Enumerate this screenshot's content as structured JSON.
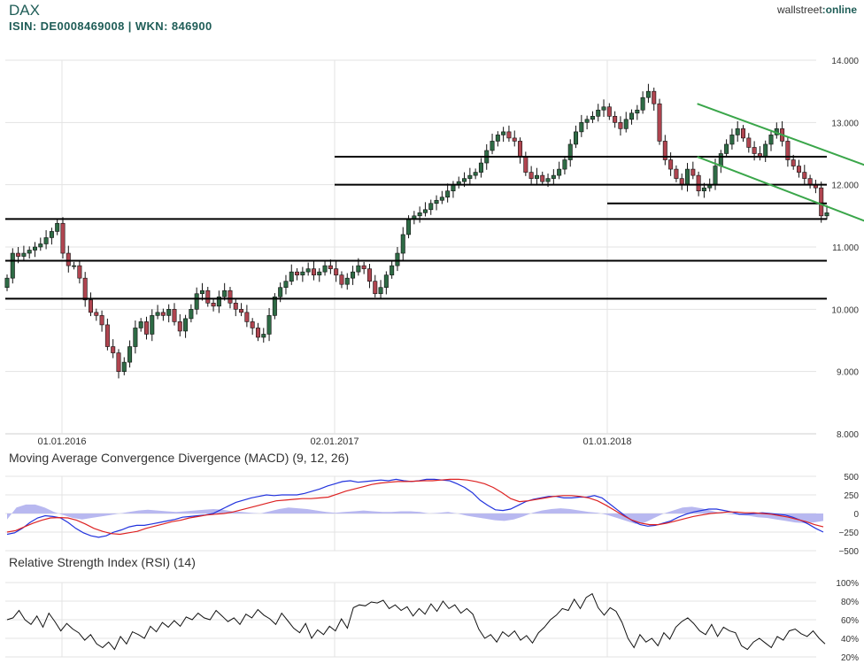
{
  "header": {
    "title": "DAX",
    "subtitle": "ISIN: DE0008469008 | WKN: 846900",
    "logo_left": "wallstreet",
    "logo_right": ":online"
  },
  "colors": {
    "grid": "#e3e3e3",
    "up": "#2e6b45",
    "down": "#b04550",
    "channel": "#3aa64a",
    "macd": "#2233dd",
    "signal": "#dd2222",
    "histogram": "#b8b8f0",
    "rsi": "#111111"
  },
  "chart_data": [
    {
      "type": "candlestick",
      "title": "DAX",
      "ylim": [
        8000,
        14000
      ],
      "yticks": [
        "14.000",
        "13.000",
        "12.000",
        "11.000",
        "10.000",
        "9.000",
        "8.000"
      ],
      "x_dates": [
        "01.01.2016",
        "02.01.2017",
        "01.01.2018"
      ],
      "support_resistance_levels": [
        {
          "value": 12450,
          "from": "2017-01",
          "to": "2018-12"
        },
        {
          "value": 12000,
          "from": "2017-01",
          "to": "2018-12"
        },
        {
          "value": 11700,
          "from": "2018-01",
          "to": "2018-12"
        },
        {
          "value": 11450,
          "from": "2015-10",
          "to": "2018-12"
        },
        {
          "value": 10780,
          "from": "2015-10",
          "to": "2018-12"
        },
        {
          "value": 10170,
          "from": "2015-10",
          "to": "2018-12"
        }
      ],
      "channel": {
        "upper": [
          [
            2018.33,
            13300
          ],
          [
            2018.92,
            12250
          ]
        ],
        "lower": [
          [
            2018.33,
            12450
          ],
          [
            2018.92,
            11350
          ]
        ]
      },
      "weekly_close": [
        10500,
        10900,
        10850,
        10900,
        10950,
        11000,
        11050,
        11150,
        11250,
        11380,
        10900,
        10700,
        10700,
        10500,
        10150,
        9950,
        9900,
        9750,
        9400,
        9300,
        9000,
        9150,
        9400,
        9700,
        9800,
        9600,
        9900,
        9950,
        9900,
        10000,
        9800,
        9650,
        9850,
        10000,
        10250,
        10300,
        10100,
        10050,
        10200,
        10300,
        10100,
        10000,
        9950,
        9800,
        9700,
        9550,
        9600,
        9900,
        10200,
        10350,
        10450,
        10600,
        10550,
        10600,
        10650,
        10550,
        10600,
        10700,
        10650,
        10550,
        10400,
        10500,
        10600,
        10700,
        10650,
        10450,
        10250,
        10350,
        10550,
        10700,
        10900,
        11200,
        11450,
        11500,
        11550,
        11600,
        11700,
        11750,
        11800,
        11900,
        12000,
        12050,
        12100,
        12150,
        12200,
        12350,
        12550,
        12700,
        12800,
        12850,
        12750,
        12700,
        12450,
        12200,
        12100,
        12150,
        12050,
        12100,
        12150,
        12250,
        12400,
        12650,
        12850,
        13000,
        13050,
        13100,
        13200,
        13250,
        13100,
        13000,
        12900,
        13050,
        13150,
        13200,
        13400,
        13500,
        13300,
        12700,
        12400,
        12250,
        12100,
        12000,
        12250,
        12150,
        11900,
        11950,
        12000,
        12300,
        12500,
        12650,
        12800,
        12900,
        12750,
        12600,
        12500,
        12450,
        12650,
        12800,
        12900,
        12700,
        12400,
        12300,
        12200,
        12100,
        12000,
        11950,
        11500,
        11550
      ]
    },
    {
      "type": "line",
      "title": "Moving Average Convergence Divergence (MACD) (9, 12, 26)",
      "ylim": [
        -500,
        500
      ],
      "yticks": [
        "500",
        "250",
        "0",
        "−250",
        "−500"
      ],
      "series": [
        {
          "values": [
            -280,
            -260,
            -200,
            -120,
            -60,
            -30,
            -40,
            -60,
            -120,
            -200,
            -260,
            -300,
            -320,
            -300,
            -250,
            -220,
            -180,
            -160,
            -160,
            -140,
            -120,
            -100,
            -80,
            -50,
            -40,
            -30,
            -20,
            0,
            50,
            100,
            150,
            180,
            210,
            230,
            250,
            240,
            250,
            250,
            250,
            270,
            300,
            330,
            370,
            400,
            430,
            440,
            420,
            430,
            440,
            450,
            440,
            460,
            440,
            430,
            440,
            460,
            460,
            450,
            440,
            400,
            350,
            280,
            180,
            110,
            50,
            40,
            60,
            110,
            160,
            190,
            210,
            230,
            230,
            210,
            210,
            220,
            220,
            240,
            210,
            130,
            50,
            -30,
            -100,
            -150,
            -170,
            -160,
            -130,
            -100,
            -50,
            -10,
            20,
            40,
            60,
            60,
            40,
            20,
            -10,
            -10,
            0,
            10,
            0,
            -10,
            -20,
            -50,
            -90,
            -140,
            -200,
            -250
          ]
        },
        {
          "values": [
            -250,
            -230,
            -180,
            -130,
            -90,
            -60,
            -55,
            -60,
            -90,
            -140,
            -200,
            -240,
            -270,
            -280,
            -260,
            -240,
            -200,
            -170,
            -140,
            -110,
            -90,
            -60,
            -40,
            -20,
            -10,
            0,
            20,
            50,
            80,
            110,
            140,
            170,
            180,
            190,
            200,
            200,
            210,
            220,
            260,
            300,
            330,
            360,
            390,
            410,
            420,
            430,
            430,
            435,
            440,
            440,
            450,
            460,
            460,
            450,
            430,
            400,
            350,
            280,
            200,
            160,
            170,
            190,
            210,
            230,
            240,
            240,
            230,
            210,
            170,
            110,
            40,
            -30,
            -90,
            -130,
            -150,
            -150,
            -130,
            -100,
            -70,
            -40,
            -20,
            0,
            10,
            20,
            20,
            10,
            10,
            0,
            -10,
            -30,
            -50,
            -80,
            -110,
            -150,
            -180
          ]
        },
        {
          "values": [
            -80,
            80,
            120,
            120,
            80,
            20,
            -20,
            -60,
            -80,
            -60,
            -40,
            -20,
            0,
            20,
            40,
            50,
            40,
            30,
            20,
            30,
            40,
            50,
            60,
            50,
            30,
            20,
            10,
            0,
            30,
            60,
            80,
            70,
            60,
            40,
            20,
            10,
            20,
            30,
            40,
            30,
            20,
            20,
            30,
            30,
            20,
            0,
            10,
            20,
            0,
            -30,
            -50,
            -70,
            -90,
            -100,
            -80,
            -40,
            10,
            40,
            60,
            70,
            60,
            40,
            20,
            10,
            -20,
            -60,
            -100,
            -140,
            -120,
            -60,
            0,
            40,
            80,
            90,
            70,
            40,
            10,
            -10,
            -20,
            -30,
            -50,
            -60,
            -80,
            -100,
            -120,
            -130,
            -120,
            -100
          ]
        }
      ]
    },
    {
      "type": "line",
      "title": "Relative Strength Index (RSI) (14)",
      "ylim": [
        20,
        100
      ],
      "yticks": [
        "100%",
        "80%",
        "60%",
        "40%",
        "20%"
      ],
      "series": [
        {
          "values": [
            60,
            62,
            70,
            60,
            55,
            64,
            52,
            67,
            58,
            48,
            56,
            50,
            46,
            38,
            44,
            34,
            30,
            36,
            28,
            42,
            34,
            47,
            44,
            40,
            53,
            47,
            57,
            52,
            59,
            53,
            63,
            60,
            67,
            62,
            60,
            70,
            64,
            58,
            62,
            55,
            66,
            62,
            71,
            65,
            61,
            55,
            67,
            59,
            51,
            46,
            56,
            40,
            49,
            44,
            53,
            48,
            61,
            51,
            73,
            76,
            75,
            79,
            78,
            81,
            72,
            76,
            70,
            74,
            64,
            72,
            66,
            77,
            69,
            80,
            72,
            76,
            67,
            72,
            66,
            50,
            40,
            44,
            36,
            47,
            42,
            48,
            38,
            43,
            35,
            46,
            52,
            60,
            65,
            72,
            70,
            82,
            72,
            84,
            88,
            73,
            65,
            73,
            69,
            57,
            40,
            30,
            44,
            36,
            40,
            32,
            46,
            39,
            52,
            58,
            62,
            56,
            48,
            44,
            55,
            42,
            52,
            48,
            46,
            32,
            28,
            36,
            40,
            35,
            30,
            42,
            38,
            48,
            50,
            45,
            42,
            48,
            40,
            34
          ]
        }
      ]
    }
  ]
}
